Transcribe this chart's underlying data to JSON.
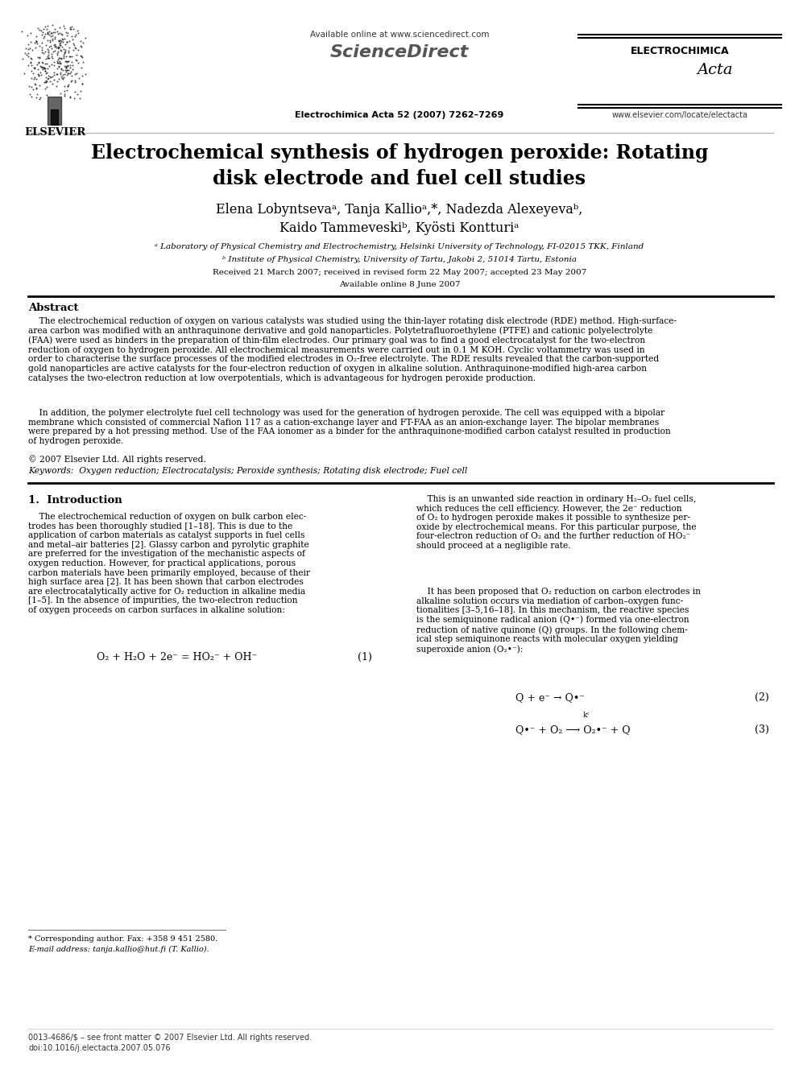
{
  "bg_color": "#ffffff",
  "elsevier_text": "ELSEVIER",
  "available_online_text": "Available online at www.sciencedirect.com",
  "sciencedirect_text": "ScienceDirect",
  "journal_ref_text": "Electrochimica Acta 52 (2007) 7262–7269",
  "electrochimica_text": "ELECTROCHIMICA",
  "acta_text": "Acta",
  "website_text": "www.elsevier.com/locate/electacta",
  "title_line1": "Electrochemical synthesis of hydrogen peroxide: Rotating",
  "title_line2": "disk electrode and fuel cell studies",
  "authors": "Elena Lobyntsevaᵃ, Tanja Kallioᵃ,*, Nadezda Alexeyevaᵇ,",
  "authors2": "Kaido Tammeveskiᵇ, Kyösti Kontturiᵃ",
  "affil_a": "ᵃ Laboratory of Physical Chemistry and Electrochemistry, Helsinki University of Technology, FI-02015 TKK, Finland",
  "affil_b": "ᵇ Institute of Physical Chemistry, University of Tartu, Jakobi 2, 51014 Tartu, Estonia",
  "received_text": "Received 21 March 2007; received in revised form 22 May 2007; accepted 23 May 2007",
  "available_text": "Available online 8 June 2007",
  "abstract_heading": "Abstract",
  "abstract_p1": "    The electrochemical reduction of oxygen on various catalysts was studied using the thin-layer rotating disk electrode (RDE) method. High-surface-\narea carbon was modified with an anthraquinone derivative and gold nanoparticles. Polytetrafluoroethylene (PTFE) and cationic polyelectrolyte\n(FAA) were used as binders in the preparation of thin-film electrodes. Our primary goal was to find a good electrocatalyst for the two-electron\nreduction of oxygen to hydrogen peroxide. All electrochemical measurements were carried out in 0.1 M KOH. Cyclic voltammetry was used in\norder to characterise the surface processes of the modified electrodes in O₂-free electrolyte. The RDE results revealed that the carbon-supported\ngold nanoparticles are active catalysts for the four-electron reduction of oxygen in alkaline solution. Anthraquinone-modified high-area carbon\ncatalyses the two-electron reduction at low overpotentials, which is advantageous for hydrogen peroxide production.",
  "abstract_p2": "    In addition, the polymer electrolyte fuel cell technology was used for the generation of hydrogen peroxide. The cell was equipped with a bipolar\nmembrane which consisted of commercial Nafion 117 as a cation-exchange layer and FT-FAA as an anion-exchange layer. The bipolar membranes\nwere prepared by a hot pressing method. Use of the FAA ionomer as a binder for the anthraquinone-modified carbon catalyst resulted in production\nof hydrogen peroxide.",
  "copyright_text": "© 2007 Elsevier Ltd. All rights reserved.",
  "keywords_text": "Keywords:  Oxygen reduction; Electrocatalysis; Peroxide synthesis; Rotating disk electrode; Fuel cell",
  "intro_heading": "1.  Introduction",
  "intro_col1_p1": "    The electrochemical reduction of oxygen on bulk carbon elec-\ntrodes has been thoroughly studied [1–18]. This is due to the\napplication of carbon materials as catalyst supports in fuel cells\nand metal–air batteries [2]. Glassy carbon and pyrolytic graphite\nare preferred for the investigation of the mechanistic aspects of\noxygen reduction. However, for practical applications, porous\ncarbon materials have been primarily employed, because of their\nhigh surface area [2]. It has been shown that carbon electrodes\nare electrocatalytically active for O₂ reduction in alkaline media\n[1–5]. In the absence of impurities, the two-electron reduction\nof oxygen proceeds on carbon surfaces in alkaline solution:",
  "equation1": "O₂ + H₂O + 2e⁻ = HO₂⁻ + OH⁻",
  "eq1_number": "(1)",
  "intro_col2_p1": "    This is an unwanted side reaction in ordinary H₂–O₂ fuel cells,\nwhich reduces the cell efficiency. However, the 2e⁻ reduction\nof O₂ to hydrogen peroxide makes it possible to synthesize per-\noxide by electrochemical means. For this particular purpose, the\nfour-electron reduction of O₂ and the further reduction of HO₂⁻\nshould proceed at a negligible rate.",
  "intro_col2_p2": "    It has been proposed that O₂ reduction on carbon electrodes in\nalkaline solution occurs via mediation of carbon–oxygen func-\ntionalities [3–5,16–18]. In this mechanism, the reactive species\nis the semiquinone radical anion (Q•⁻) formed via one-electron\nreduction of native quinone (Q) groups. In the following chem-\nical step semiquinone reacts with molecular oxygen yielding\nsuperoxide anion (O₂•⁻):",
  "equation2": "Q + e⁻ → Q•⁻",
  "eq2_number": "(2)",
  "equation3": "Q•⁻ + O₂ ⟶ O₂•⁻ + Q",
  "eq3_kc": "kᶜ",
  "eq3_number": "(3)",
  "footnote_star": "* Corresponding author. Fax: +358 9 451 2580.",
  "footnote_email": "E-mail address: tanja.kallio@hut.fi (T. Kallio).",
  "footer_text1": "0013-4686/$ – see front matter © 2007 Elsevier Ltd. All rights reserved.",
  "footer_text2": "doi:10.1016/j.electacta.2007.05.076"
}
